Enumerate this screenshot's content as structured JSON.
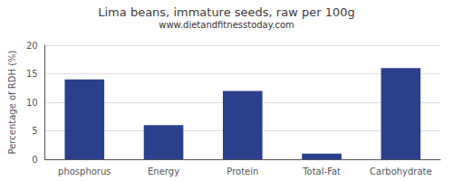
{
  "chart_data": {
    "type": "bar",
    "title": "Lima beans, immature seeds, raw per 100g",
    "subtitle": "www.dietandfitnesstoday.com",
    "categories": [
      "phosphorus",
      "Energy",
      "Protein",
      "Total-Fat",
      "Carbohydrate"
    ],
    "values": [
      14,
      6,
      12,
      1,
      16
    ],
    "color": "#2b3f8c",
    "ylabel": "Percentage of RDH (%)",
    "ylim": [
      0,
      20
    ],
    "yticks": [
      0,
      5,
      10,
      15,
      20
    ],
    "grid": true
  }
}
